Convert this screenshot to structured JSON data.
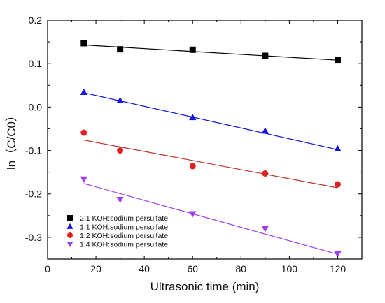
{
  "chart_data": {
    "type": "scatter",
    "title": "",
    "xlabel": "Ultrasonic time (min)",
    "ylabel": "ln（C/C0）",
    "xlim": [
      0,
      130
    ],
    "ylim": [
      -0.35,
      0.2
    ],
    "x_ticks": [
      0,
      20,
      40,
      60,
      80,
      100,
      120
    ],
    "y_ticks": [
      0.2,
      0.1,
      0.0,
      -0.1,
      -0.2,
      -0.3
    ],
    "x_tick_labels": [
      "0",
      "20",
      "40",
      "60",
      "80",
      "100",
      "120"
    ],
    "y_tick_labels": [
      "0.2",
      "0.1",
      "0.0",
      "-0.1",
      "-0.2",
      "-0.3"
    ],
    "grid": false,
    "legend_position": "lower-left",
    "series": [
      {
        "name": "2:1 KOH:sodium persulfate",
        "marker": "square",
        "color": "#000000",
        "x": [
          15,
          30,
          60,
          90,
          120
        ],
        "y": [
          0.147,
          0.133,
          0.132,
          0.118,
          0.109
        ],
        "fit": [
          [
            15,
            0.143
          ],
          [
            120,
            0.108
          ]
        ]
      },
      {
        "name": "1:1 KOH:sodium persulfate",
        "marker": "triangle-up",
        "color": "#1414e0",
        "x": [
          15,
          30,
          60,
          90,
          120
        ],
        "y": [
          0.034,
          0.015,
          -0.024,
          -0.055,
          -0.096
        ],
        "fit": [
          [
            15,
            0.033
          ],
          [
            120,
            -0.098
          ]
        ]
      },
      {
        "name": "1:2 KOH:sodium persulfate",
        "marker": "circle",
        "color": "#e02020",
        "line_color": "#c0302a",
        "x": [
          15,
          30,
          60,
          90,
          120
        ],
        "y": [
          -0.059,
          -0.1,
          -0.136,
          -0.153,
          -0.178
        ],
        "fit": [
          [
            15,
            -0.076
          ],
          [
            120,
            -0.186
          ]
        ]
      },
      {
        "name": "1:4 KOH:sodium persulfate",
        "marker": "triangle-down",
        "color": "#9b3ff0",
        "x": [
          15,
          30,
          60,
          90,
          120
        ],
        "y": [
          -0.166,
          -0.213,
          -0.246,
          -0.28,
          -0.338
        ],
        "fit": [
          [
            15,
            -0.176
          ],
          [
            120,
            -0.339
          ]
        ]
      }
    ]
  }
}
